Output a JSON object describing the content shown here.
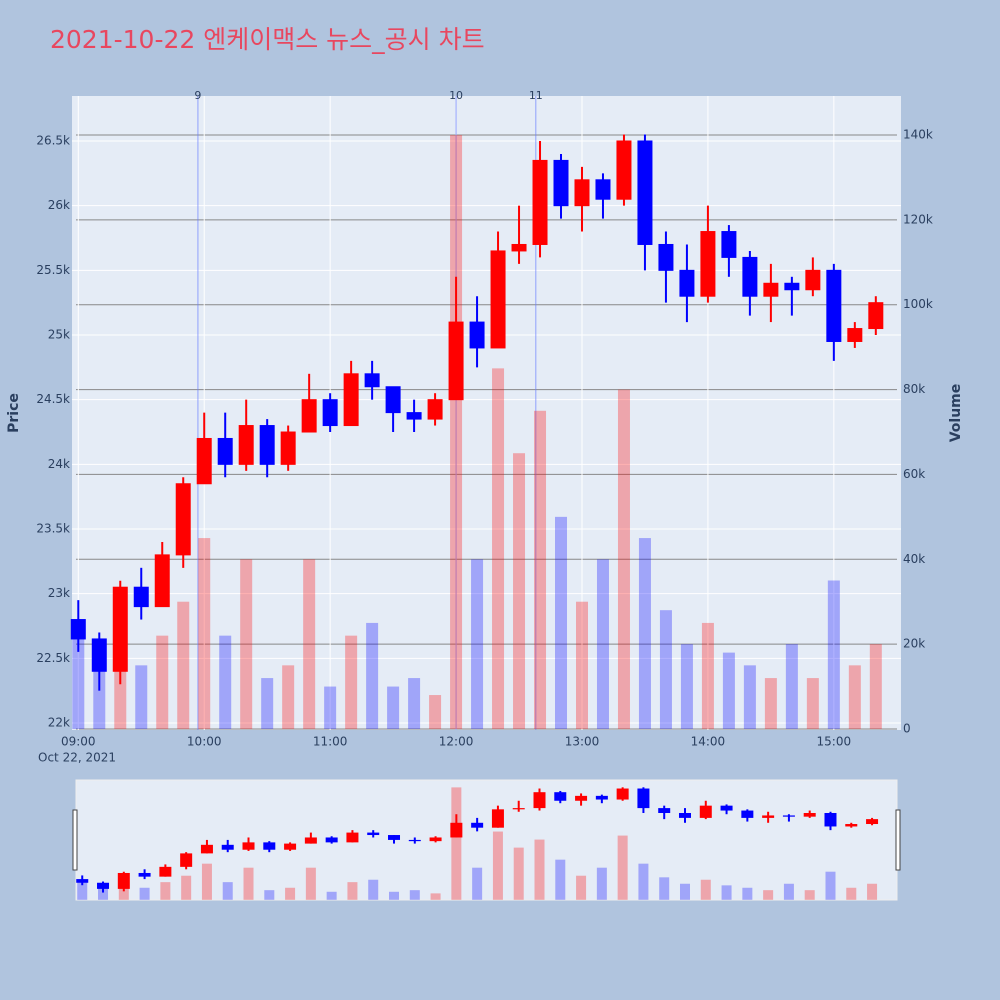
{
  "chart_data": {
    "type": "candlestick",
    "title": "2021-10-22 엔케이맥스 뉴스_공시 차트",
    "title_color": "#e8475f",
    "y_label": "Price",
    "y2_label": "Volume",
    "x_date_label": "Oct 22, 2021",
    "up_color": "#ff0000",
    "down_color": "#0000ff",
    "x": [
      "2021-10-22 09:00",
      "2021-10-22 09:10",
      "2021-10-22 09:20",
      "2021-10-22 09:30",
      "2021-10-22 09:40",
      "2021-10-22 09:50",
      "2021-10-22 10:00",
      "2021-10-22 10:10",
      "2021-10-22 10:20",
      "2021-10-22 10:30",
      "2021-10-22 10:40",
      "2021-10-22 10:50",
      "2021-10-22 11:00",
      "2021-10-22 11:10",
      "2021-10-22 11:20",
      "2021-10-22 11:30",
      "2021-10-22 11:40",
      "2021-10-22 11:50",
      "2021-10-22 12:00",
      "2021-10-22 12:10",
      "2021-10-22 12:20",
      "2021-10-22 12:30",
      "2021-10-22 12:40",
      "2021-10-22 12:50",
      "2021-10-22 13:00",
      "2021-10-22 13:10",
      "2021-10-22 13:20",
      "2021-10-22 13:30",
      "2021-10-22 13:40",
      "2021-10-22 13:50",
      "2021-10-22 14:00",
      "2021-10-22 14:10",
      "2021-10-22 14:20",
      "2021-10-22 14:30",
      "2021-10-22 14:40",
      "2021-10-22 14:50",
      "2021-10-22 15:00",
      "2021-10-22 15:10",
      "2021-10-22 15:20"
    ],
    "open": [
      22800,
      22650,
      22400,
      23050,
      22900,
      23300,
      23850,
      24200,
      24000,
      24300,
      24000,
      24250,
      24500,
      24300,
      24700,
      24600,
      24400,
      24350,
      24500,
      25100,
      24900,
      25650,
      25700,
      26350,
      26000,
      26200,
      26050,
      26500,
      25700,
      25500,
      25300,
      25800,
      25600,
      25300,
      25400,
      25350,
      25500,
      24950,
      25050
    ],
    "high": [
      22950,
      22700,
      23100,
      23200,
      23400,
      23900,
      24400,
      24400,
      24500,
      24350,
      24300,
      24700,
      24550,
      24800,
      24800,
      24600,
      24500,
      24550,
      25450,
      25300,
      25800,
      26000,
      26500,
      26400,
      26300,
      26250,
      26550,
      26550,
      25800,
      25700,
      26000,
      25850,
      25650,
      25550,
      25450,
      25600,
      25550,
      25100,
      25300
    ],
    "low": [
      22550,
      22250,
      22300,
      22800,
      22900,
      23200,
      23850,
      23900,
      23950,
      23900,
      23950,
      24250,
      24250,
      24300,
      24500,
      24250,
      24250,
      24300,
      24500,
      24750,
      24900,
      25550,
      25600,
      25900,
      25800,
      25900,
      26000,
      25500,
      25250,
      25100,
      25250,
      25450,
      25150,
      25100,
      25150,
      25300,
      24800,
      24900,
      25000
    ],
    "close": [
      22650,
      22400,
      23050,
      22900,
      23300,
      23850,
      24200,
      24000,
      24300,
      24000,
      24250,
      24500,
      24300,
      24700,
      24600,
      24400,
      24350,
      24500,
      25100,
      24900,
      25650,
      25700,
      26350,
      26000,
      26200,
      26050,
      26500,
      25700,
      25500,
      25300,
      25800,
      25600,
      25300,
      25400,
      25350,
      25500,
      24950,
      25050,
      25250
    ],
    "volume": [
      25000,
      18000,
      20000,
      15000,
      22000,
      30000,
      45000,
      22000,
      40000,
      12000,
      15000,
      40000,
      10000,
      22000,
      25000,
      10000,
      12000,
      8000,
      140000,
      40000,
      85000,
      65000,
      75000,
      50000,
      30000,
      40000,
      80000,
      45000,
      28000,
      20000,
      25000,
      18000,
      15000,
      12000,
      20000,
      12000,
      35000,
      15000,
      20000
    ],
    "xlim": [
      "2021-10-22 08:57",
      "2021-10-22 15:32"
    ],
    "xticks": [
      {
        "value": "2021-10-22 09:00",
        "label": "09:00"
      },
      {
        "value": "2021-10-22 10:00",
        "label": "10:00"
      },
      {
        "value": "2021-10-22 11:00",
        "label": "11:00"
      },
      {
        "value": "2021-10-22 12:00",
        "label": "12:00"
      },
      {
        "value": "2021-10-22 13:00",
        "label": "13:00"
      },
      {
        "value": "2021-10-22 14:00",
        "label": "14:00"
      },
      {
        "value": "2021-10-22 15:00",
        "label": "15:00"
      }
    ],
    "ylim": [
      21946,
      26848
    ],
    "yticks": [
      {
        "value": 22000,
        "label": "22k"
      },
      {
        "value": 22500,
        "label": "22.5k"
      },
      {
        "value": 23000,
        "label": "23k"
      },
      {
        "value": 23500,
        "label": "23.5k"
      },
      {
        "value": 24000,
        "label": "24k"
      },
      {
        "value": 24500,
        "label": "24.5k"
      },
      {
        "value": 25000,
        "label": "25k"
      },
      {
        "value": 25500,
        "label": "25.5k"
      },
      {
        "value": 26000,
        "label": "26k"
      },
      {
        "value": 26500,
        "label": "26.5k"
      }
    ],
    "y2lim": [
      -240,
      149200
    ],
    "y2ticks": [
      0,
      {
        "value": 20000,
        "label": "20k"
      },
      {
        "value": 40000,
        "label": "40k"
      },
      {
        "value": 60000,
        "label": "60k"
      },
      {
        "value": 80000,
        "label": "80k"
      },
      {
        "value": 100000,
        "label": "100k"
      },
      {
        "value": 120000,
        "label": "120k"
      },
      {
        "value": 140000,
        "label": "140k"
      }
    ],
    "annotations": [
      {
        "x": "2021-10-22 09:57",
        "text": "9"
      },
      {
        "x": "2021-10-22 12:00",
        "text": "10"
      },
      {
        "x": "2021-10-22 12:38",
        "text": "11"
      }
    ],
    "grid": true,
    "range_slider": true
  }
}
